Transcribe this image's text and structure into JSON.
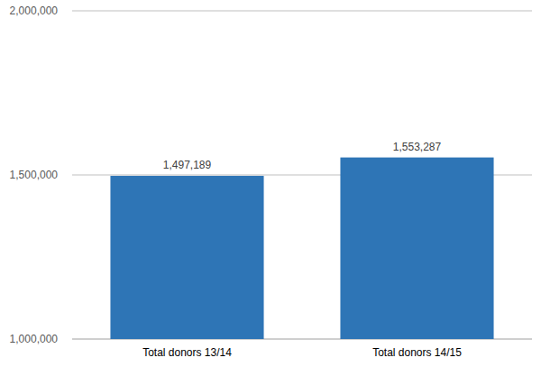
{
  "chart_data": {
    "type": "bar",
    "categories": [
      "Total donors 13/14",
      "Total donors 14/15"
    ],
    "values": [
      1497189,
      1553287
    ],
    "value_labels": [
      "1,497,189",
      "1,553,287"
    ],
    "color": "#2e75b6",
    "ylim": [
      1000000,
      2000000
    ],
    "yticks": [
      {
        "value": 1000000,
        "label": "1,000,000"
      },
      {
        "value": 1500000,
        "label": "1,500,000"
      },
      {
        "value": 2000000,
        "label": "2,000,000"
      }
    ],
    "grid": true,
    "data_labels": true
  }
}
